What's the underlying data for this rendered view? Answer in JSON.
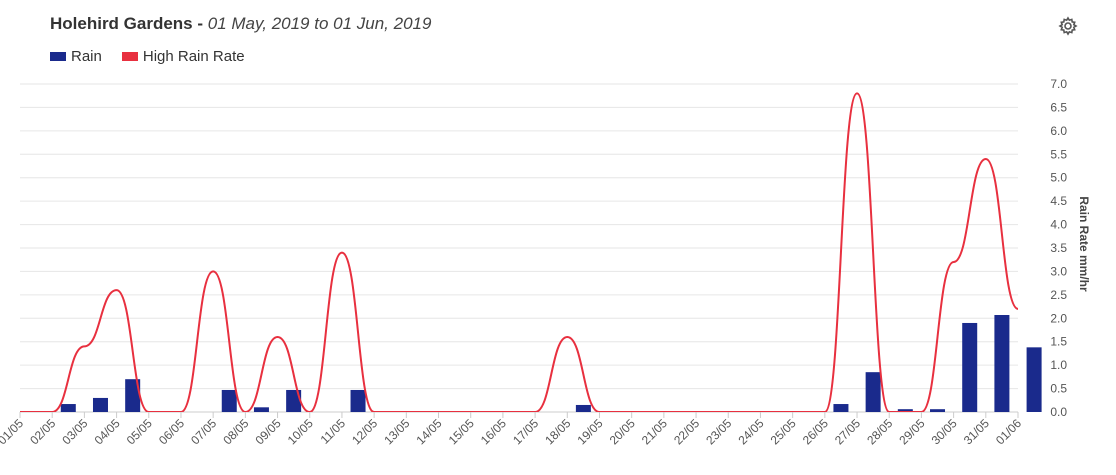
{
  "header": {
    "station": "Holehird Gardens -",
    "range": "01 May, 2019 to 01 Jun, 2019"
  },
  "icons": {
    "settings": "gear-icon"
  },
  "chart_data": {
    "type": "bar+line",
    "title": "Holehird Gardens - 01 May, 2019 to 01 Jun, 2019",
    "ylabel": "Rain Rate mm/hr",
    "ylim": [
      0,
      7.0
    ],
    "yticks": [
      "0.0",
      "0.5",
      "1.0",
      "1.5",
      "2.0",
      "2.5",
      "3.0",
      "3.5",
      "4.0",
      "4.5",
      "5.0",
      "5.5",
      "6.0",
      "6.5",
      "7.0"
    ],
    "grid": true,
    "legend_position": "top-left",
    "categories": [
      "01/05",
      "02/05",
      "03/05",
      "04/05",
      "05/05",
      "06/05",
      "07/05",
      "08/05",
      "09/05",
      "10/05",
      "11/05",
      "12/05",
      "13/05",
      "14/05",
      "15/05",
      "16/05",
      "17/05",
      "18/05",
      "19/05",
      "20/05",
      "21/05",
      "22/05",
      "23/05",
      "24/05",
      "25/05",
      "26/05",
      "27/05",
      "28/05",
      "29/05",
      "30/05",
      "31/05",
      "01/06"
    ],
    "series": [
      {
        "name": "Rain",
        "type": "bar",
        "color": "#1a2a8c",
        "values": [
          0,
          0.17,
          0.3,
          0.7,
          0,
          0,
          0.47,
          0.1,
          0.47,
          0,
          0.47,
          0,
          0,
          0,
          0,
          0,
          0,
          0.15,
          0,
          0,
          0,
          0,
          0,
          0,
          0,
          0.17,
          0.85,
          0.06,
          0.06,
          1.9,
          2.07,
          1.38
        ]
      },
      {
        "name": "High Rain Rate",
        "type": "line",
        "color": "#e8303f",
        "values": [
          0,
          0,
          1.4,
          2.6,
          0,
          0,
          3.0,
          0,
          1.6,
          0,
          3.4,
          0,
          0,
          0,
          0,
          0,
          0,
          1.6,
          0,
          0,
          0,
          0,
          0,
          0,
          0,
          0,
          6.8,
          0,
          0,
          3.2,
          5.4,
          2.2
        ]
      }
    ]
  }
}
